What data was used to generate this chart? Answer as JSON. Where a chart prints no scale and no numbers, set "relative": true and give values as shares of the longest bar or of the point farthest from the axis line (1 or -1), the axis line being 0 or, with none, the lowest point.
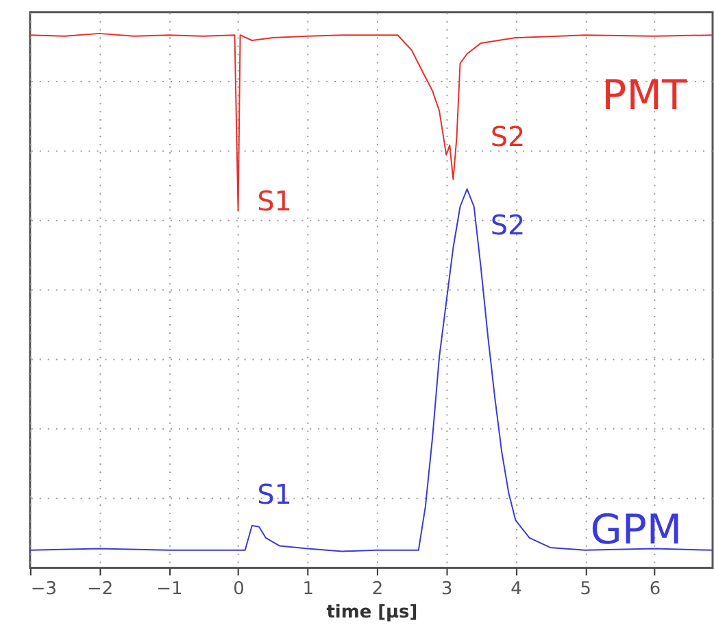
{
  "chart_data": {
    "type": "line",
    "relative": true,
    "xlabel": "time [μs]",
    "xlim": [
      -3,
      6.84
    ],
    "xticks": [
      -3,
      -2,
      -1,
      0,
      1,
      2,
      3,
      4,
      5,
      6
    ],
    "grid": true,
    "marker": "none",
    "line_style": "solid",
    "series": [
      {
        "color": "#e8302a",
        "x": [
          -3,
          -2.5,
          -2,
          -1.5,
          -1,
          -0.5,
          -0.05,
          0,
          0.03,
          0.2,
          0.5,
          1,
          1.5,
          2,
          2.3,
          2.5,
          2.7,
          2.8,
          2.9,
          3.0,
          3.05,
          3.1,
          3.15,
          3.2,
          3.3,
          3.5,
          4,
          5,
          6,
          6.84
        ],
        "values": [
          0.997,
          0.995,
          1.0,
          0.995,
          0.997,
          0.995,
          0.997,
          0.668,
          0.997,
          0.987,
          0.992,
          0.995,
          0.997,
          0.997,
          0.997,
          0.969,
          0.918,
          0.893,
          0.855,
          0.773,
          0.791,
          0.727,
          0.804,
          0.944,
          0.962,
          0.982,
          0.992,
          0.997,
          0.995,
          0.997
        ]
      },
      {
        "color": "#3a3adc",
        "x": [
          -3,
          -2,
          -1,
          0,
          0.1,
          0.2,
          0.3,
          0.4,
          0.6,
          1,
          1.5,
          2,
          2.6,
          2.7,
          2.8,
          2.9,
          3.0,
          3.1,
          3.2,
          3.3,
          3.4,
          3.5,
          3.6,
          3.7,
          3.8,
          3.9,
          4.0,
          4.2,
          4.5,
          5,
          6,
          6.84
        ],
        "values": [
          0.033,
          0.036,
          0.033,
          0.033,
          0.033,
          0.079,
          0.077,
          0.056,
          0.041,
          0.036,
          0.031,
          0.033,
          0.033,
          0.115,
          0.242,
          0.395,
          0.497,
          0.599,
          0.676,
          0.709,
          0.676,
          0.561,
          0.434,
          0.319,
          0.217,
          0.14,
          0.089,
          0.056,
          0.038,
          0.033,
          0.036,
          0.033
        ]
      }
    ],
    "annotations": [
      "PMT",
      "S1",
      "S2",
      "S2",
      "S1",
      "GPM"
    ]
  }
}
